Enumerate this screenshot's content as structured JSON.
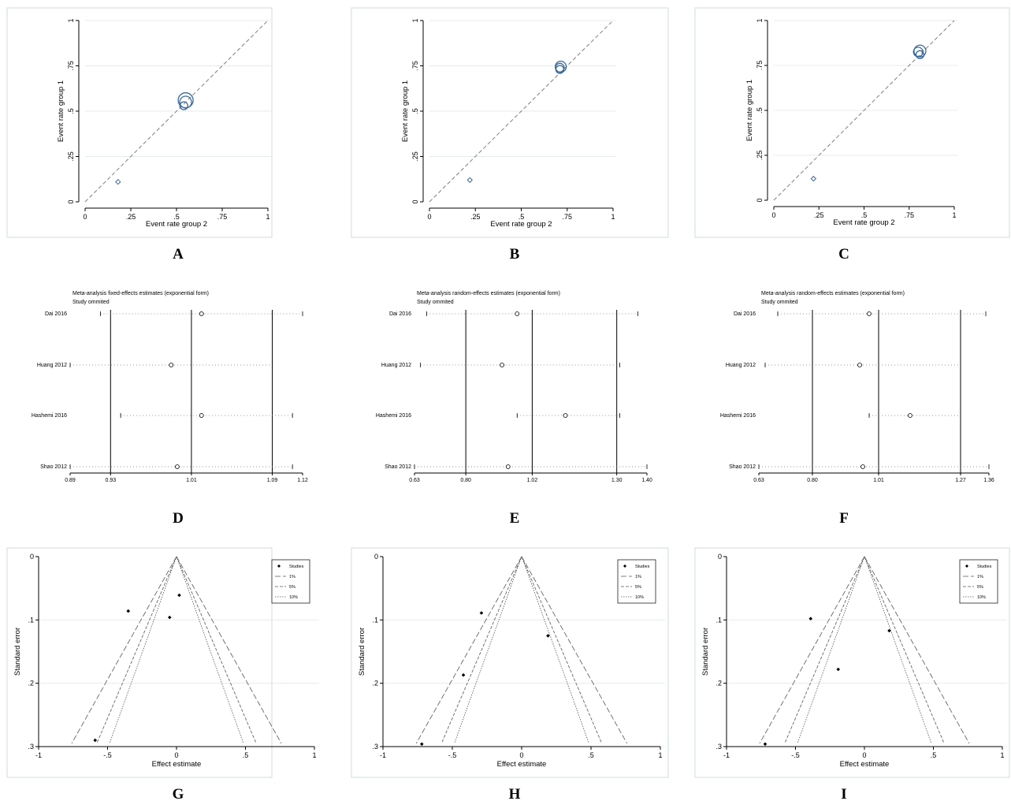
{
  "figure": {
    "colors": {
      "marker": "#3a6a9a",
      "grid": "#e4ece9",
      "dashed": "#808080",
      "frame": "#cfdedb"
    }
  },
  "chart_data": [
    {
      "id": "A",
      "type": "scatter",
      "label": "A",
      "xlabel": "Event rate group 2",
      "ylabel": "Event rate group 1",
      "xlim": [
        0,
        1
      ],
      "ylim": [
        0,
        1
      ],
      "xticks": [
        "0",
        ".25",
        ".5",
        ".75",
        "1"
      ],
      "yticks": [
        "0",
        ".25",
        ".5",
        ".75",
        "1"
      ],
      "reference_line": "y = x",
      "points": [
        {
          "x": 0.18,
          "y": 0.11,
          "marker": "diamond"
        },
        {
          "x": 0.54,
          "y": 0.53,
          "marker": "circle",
          "size": 1.0
        },
        {
          "x": 0.55,
          "y": 0.55,
          "marker": "circle",
          "size": 1.5
        },
        {
          "x": 0.55,
          "y": 0.56,
          "marker": "circle",
          "size": 1.9
        }
      ]
    },
    {
      "id": "B",
      "type": "scatter",
      "label": "B",
      "xlabel": "Event rate group 2",
      "ylabel": "Event rate group 1",
      "xlim": [
        0,
        1
      ],
      "ylim": [
        0,
        1
      ],
      "xticks": [
        "0",
        ".25",
        ".5",
        ".75",
        "1"
      ],
      "yticks": [
        "0",
        ".25",
        ".5",
        ".75",
        "1"
      ],
      "reference_line": "y = x",
      "points": [
        {
          "x": 0.22,
          "y": 0.12,
          "marker": "diamond"
        },
        {
          "x": 0.71,
          "y": 0.73,
          "marker": "circle",
          "size": 1.0
        },
        {
          "x": 0.715,
          "y": 0.745,
          "marker": "circle",
          "size": 1.4
        },
        {
          "x": 0.71,
          "y": 0.74,
          "marker": "circle",
          "size": 1.1
        }
      ]
    },
    {
      "id": "C",
      "type": "scatter",
      "label": "C",
      "xlabel": "Event rate group 2",
      "ylabel": "Event rate group 1",
      "xlim": [
        0,
        1
      ],
      "ylim": [
        0,
        1
      ],
      "xticks": [
        "0",
        ".25",
        ".5",
        ".75",
        "1"
      ],
      "yticks": [
        "0",
        ".25",
        ".5",
        ".75",
        "1"
      ],
      "reference_line": "y = x",
      "points": [
        {
          "x": 0.22,
          "y": 0.12,
          "marker": "diamond"
        },
        {
          "x": 0.81,
          "y": 0.81,
          "marker": "circle",
          "size": 1.0
        },
        {
          "x": 0.81,
          "y": 0.83,
          "marker": "circle",
          "size": 1.5
        },
        {
          "x": 0.8,
          "y": 0.825,
          "marker": "circle",
          "size": 1.2
        }
      ]
    },
    {
      "id": "D",
      "type": "sensitivity",
      "label": "D",
      "title_lines": [
        "Meta-analysis fixed-effects estimates (exponential form)",
        "Study ommited"
      ],
      "xlim": [
        0.89,
        1.12
      ],
      "xticks": [
        "0.89",
        "0.93",
        "1.01",
        "1.09",
        "1.12"
      ],
      "ref_lines": [
        0.93,
        1.01,
        1.09
      ],
      "studies": [
        {
          "name": "Dai 2016",
          "lo": 0.92,
          "est": 1.02,
          "hi": 1.12
        },
        {
          "name": "Huang 2012",
          "lo": 0.89,
          "est": 0.99,
          "hi": 1.09
        },
        {
          "name": "Hashemi 2016",
          "lo": 0.94,
          "est": 1.02,
          "hi": 1.11
        },
        {
          "name": "Shao 2012",
          "lo": 0.89,
          "est": 0.996,
          "hi": 1.11
        }
      ]
    },
    {
      "id": "E",
      "type": "sensitivity",
      "label": "E",
      "title_lines": [
        "Meta-analysis random-effects estimates (exponential form)",
        "Study ommited"
      ],
      "xlim": [
        0.63,
        1.4
      ],
      "xticks": [
        "0.63",
        "0.80",
        "1.02",
        "1.30",
        "1.40"
      ],
      "ref_lines": [
        0.8,
        1.02,
        1.3
      ],
      "studies": [
        {
          "name": "Dai 2016",
          "lo": 0.67,
          "est": 0.97,
          "hi": 1.37
        },
        {
          "name": "Huang 2012",
          "lo": 0.65,
          "est": 0.92,
          "hi": 1.31
        },
        {
          "name": "Hashemi 2016",
          "lo": 0.97,
          "est": 1.13,
          "hi": 1.31
        },
        {
          "name": "Shao 2012",
          "lo": 0.63,
          "est": 0.94,
          "hi": 1.4
        }
      ]
    },
    {
      "id": "F",
      "type": "sensitivity",
      "label": "F",
      "title_lines": [
        "Meta-analysis random-effects estimates (exponential form)",
        "Study ommited"
      ],
      "xlim": [
        0.63,
        1.36
      ],
      "xticks": [
        "0.63",
        "0.80",
        "1.01",
        "1.27",
        "1.36"
      ],
      "ref_lines": [
        0.8,
        1.01,
        1.27
      ],
      "studies": [
        {
          "name": "Dai 2016",
          "lo": 0.69,
          "est": 0.98,
          "hi": 1.35
        },
        {
          "name": "Huang 2012",
          "lo": 0.65,
          "est": 0.95,
          "hi": 1.27
        },
        {
          "name": "Hashemi 2016",
          "lo": 0.98,
          "est": 1.11,
          "hi": 1.27
        },
        {
          "name": "Shao 2012",
          "lo": 0.63,
          "est": 0.96,
          "hi": 1.36
        }
      ]
    },
    {
      "id": "G",
      "type": "funnel",
      "label": "G",
      "xlabel": "Effect estimate",
      "ylabel": "Standard error",
      "xlim": [
        -1,
        1
      ],
      "ylim": [
        0,
        0.3
      ],
      "xticks": [
        "-1",
        "-.5",
        "0",
        ".5",
        "1"
      ],
      "yticks": [
        "0",
        ".1",
        ".2",
        ".3"
      ],
      "legend": [
        "Studies",
        "1%",
        "5%",
        "10%"
      ],
      "points": [
        {
          "x": -0.35,
          "y": 0.086
        },
        {
          "x": 0.02,
          "y": 0.061
        },
        {
          "x": -0.05,
          "y": 0.096
        },
        {
          "x": -0.59,
          "y": 0.29
        }
      ]
    },
    {
      "id": "H",
      "type": "funnel",
      "label": "H",
      "xlabel": "Effect estimate",
      "ylabel": "Standard error",
      "xlim": [
        -1,
        1
      ],
      "ylim": [
        0,
        0.3
      ],
      "xticks": [
        "-1",
        "-.5",
        "0",
        ".5",
        "1"
      ],
      "yticks": [
        "0",
        ".1",
        ".2",
        ".3"
      ],
      "legend": [
        "Studies",
        "1%",
        "5%",
        "10%"
      ],
      "points": [
        {
          "x": -0.29,
          "y": 0.089
        },
        {
          "x": 0.19,
          "y": 0.125
        },
        {
          "x": -0.42,
          "y": 0.187
        },
        {
          "x": -0.72,
          "y": 0.296
        }
      ]
    },
    {
      "id": "I",
      "type": "funnel",
      "label": "I",
      "xlabel": "Effect estimate",
      "ylabel": "Standard error",
      "xlim": [
        -1,
        1
      ],
      "ylim": [
        0,
        0.3
      ],
      "xticks": [
        "-1",
        "-.5",
        "0",
        ".5",
        "1"
      ],
      "yticks": [
        "0",
        ".1",
        ".2",
        ".3"
      ],
      "legend": [
        "Studies",
        "1%",
        "5%",
        "10%"
      ],
      "points": [
        {
          "x": -0.39,
          "y": 0.098
        },
        {
          "x": 0.18,
          "y": 0.117
        },
        {
          "x": -0.19,
          "y": 0.178
        },
        {
          "x": -0.72,
          "y": 0.296
        }
      ]
    }
  ]
}
